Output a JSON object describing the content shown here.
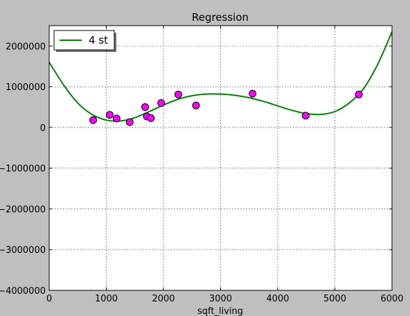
{
  "chart_data": {
    "type": "scatter",
    "title": "Regression",
    "xlabel": "sqft_living",
    "ylabel": "",
    "xlim": [
      0,
      6000
    ],
    "ylim": [
      -4000000,
      2500000
    ],
    "xticks": [
      0,
      1000,
      2000,
      3000,
      4000,
      5000,
      6000
    ],
    "yticks": [
      -4000000,
      -3000000,
      -2000000,
      -1000000,
      0,
      1000000,
      2000000
    ],
    "xtick_labels": [
      "0",
      "1000",
      "2000",
      "3000",
      "4000",
      "5000",
      "6000"
    ],
    "ytick_labels": [
      "−4000000",
      "−3000000",
      "−2000000",
      "−1000000",
      "0",
      "1000000",
      "2000000"
    ],
    "grid": true,
    "legend": {
      "position": "top-left",
      "entries": [
        "4 st"
      ]
    },
    "points": {
      "color": "#ff00ff",
      "x": [
        770,
        1060,
        1180,
        1410,
        1680,
        1710,
        1780,
        1960,
        2260,
        2570,
        3560,
        4490,
        5420
      ],
      "y": [
        180000,
        310000,
        220000,
        130000,
        500000,
        270000,
        230000,
        600000,
        810000,
        540000,
        830000,
        290000,
        810000
      ]
    },
    "series": [
      {
        "name": "4 st",
        "color": "#007f00",
        "x": [
          0,
          250,
          500,
          750,
          1000,
          1250,
          1500,
          1750,
          2000,
          2250,
          2500,
          2750,
          3000,
          3250,
          3500,
          3750,
          4000,
          4250,
          4500,
          4750,
          5000,
          5250,
          5500,
          5750,
          6000
        ],
        "y": [
          1600000,
          1050000,
          600000,
          320000,
          180000,
          160000,
          240000,
          390000,
          550000,
          690000,
          780000,
          820000,
          820000,
          790000,
          730000,
          640000,
          530000,
          420000,
          340000,
          320000,
          390000,
          600000,
          950000,
          1550000,
          2350000
        ]
      }
    ]
  }
}
